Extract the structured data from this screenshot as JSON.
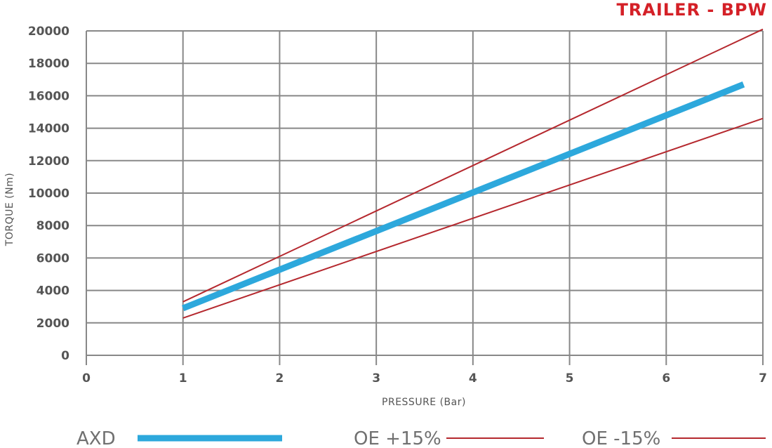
{
  "chart_data": {
    "type": "line",
    "title": "TRAILER - BPW",
    "xlabel": "PRESSURE (Bar)",
    "ylabel": "TORQUE (Nm)",
    "xlim": [
      0,
      7
    ],
    "ylim": [
      0,
      20000
    ],
    "x_ticks": [
      "0",
      "1",
      "2",
      "3",
      "4",
      "5",
      "6",
      "7"
    ],
    "y_ticks": [
      "0",
      "2000",
      "4000",
      "6000",
      "8000",
      "10000",
      "12000",
      "14000",
      "16000",
      "18000",
      "20000"
    ],
    "grid": true,
    "legend_position": "bottom",
    "series": [
      {
        "name": "AXD",
        "color": "#2da8dc",
        "x": [
          1,
          6.8
        ],
        "y": [
          2900,
          16700
        ]
      },
      {
        "name": "OE +15%",
        "color": "#b5282e",
        "x": [
          1,
          7
        ],
        "y": [
          3300,
          20100
        ]
      },
      {
        "name": "OE -15%",
        "color": "#b5282e",
        "x": [
          1,
          7
        ],
        "y": [
          2300,
          14600
        ]
      }
    ]
  }
}
